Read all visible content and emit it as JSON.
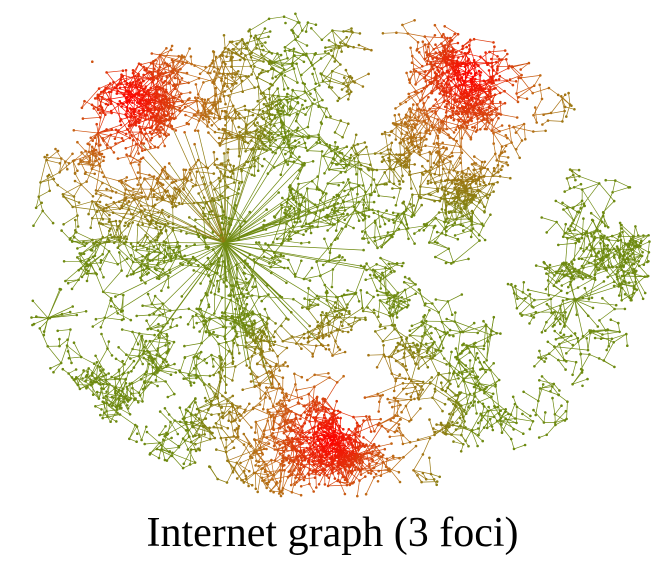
{
  "figure": {
    "caption": "Internet graph (3 foci)"
  },
  "colors": {
    "background": "#ffffff",
    "focus_near": "#ff0000",
    "mid": "#c26a16",
    "far": "#6e8a10"
  }
}
